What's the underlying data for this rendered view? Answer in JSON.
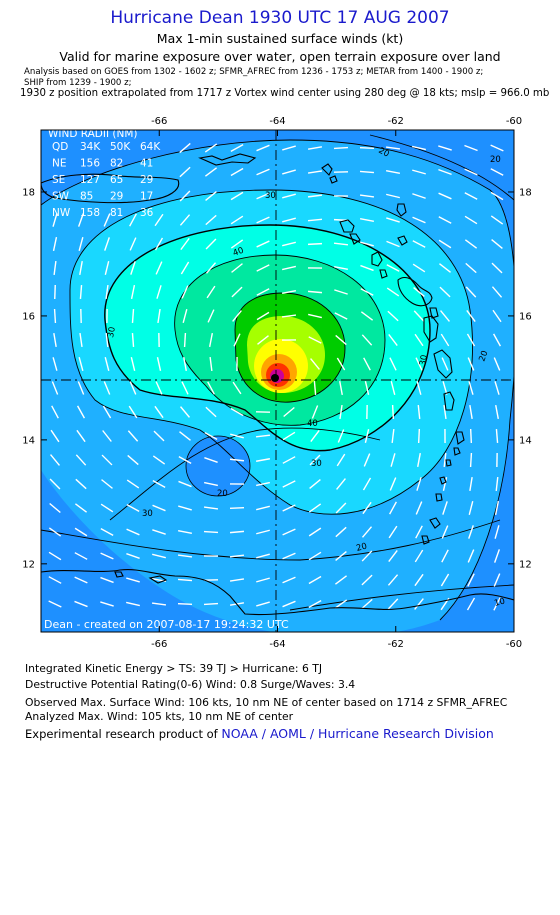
{
  "header": {
    "title": "Hurricane Dean 1930 UTC 17 AUG 2007",
    "subtitle": "Max 1-min sustained surface winds (kt)",
    "validity": "Valid for marine exposure over water, open terrain exposure over land",
    "analysis_line1": "Analysis based on  GOES from 1302 - 1602 z;  SFMR_AFREC from 1236 - 1753 z;  METAR from 1400 - 1900 z;",
    "analysis_line2": "SHIP from 1239 - 1900 z;",
    "position_line": "1930 z position extrapolated from 1717 z Vortex wind center using 280 deg @ 18 kts; mslp = 966.0 mb"
  },
  "map": {
    "lon_ticks": [
      "-66",
      "-64",
      "-62",
      "-60"
    ],
    "lat_ticks": [
      "18",
      "16",
      "14",
      "12"
    ],
    "lon_range": [
      -68,
      -60
    ],
    "lat_range": [
      10.9,
      19.0
    ],
    "center": {
      "lon": -64.0,
      "lat": 14.9
    },
    "credit": "Dean - created on 2007-08-17 19:24:32 UTC",
    "contour_labels": [
      "20",
      "20",
      "30",
      "40",
      "30",
      "20",
      "20",
      "30",
      "30",
      "40",
      "30",
      "20",
      "10"
    ],
    "colors": {
      "bg": "#1e90ff",
      "c20": "#1fb0ff",
      "c30": "#19d8ff",
      "c40": "#00ffe6",
      "c50": "#00e8a0",
      "c60": "#00cc00",
      "c70": "#a6ff00",
      "c80": "#ffff00",
      "c90": "#ffa500",
      "c100": "#ff3300",
      "core": "#cc0099"
    }
  },
  "wind_radii": {
    "title": "WIND RADII (NM)",
    "header": [
      "QD",
      "34K",
      "50K",
      "64K"
    ],
    "rows": [
      [
        "NE",
        "156",
        "82",
        "41"
      ],
      [
        "SE",
        "127",
        "65",
        "29"
      ],
      [
        "SW",
        "85",
        "29",
        "17"
      ],
      [
        "NW",
        "158",
        "81",
        "36"
      ]
    ]
  },
  "footer": {
    "ike": "Integrated Kinetic Energy > TS: 39 TJ   > Hurricane: 6 TJ",
    "dpr": "Destructive Potential Rating(0-6)   Wind: 0.8 Surge/Waves: 3.4",
    "observed": "Observed Max. Surface Wind: 106 kts, 10 nm NE of center based on 1714 z SFMR_AFREC",
    "analyzed": "Analyzed Max. Wind: 105 kts, 10 nm NE of center",
    "credit_prefix": "Experimental research product of ",
    "credit_link": "NOAA / AOML / Hurricane Research Division"
  }
}
